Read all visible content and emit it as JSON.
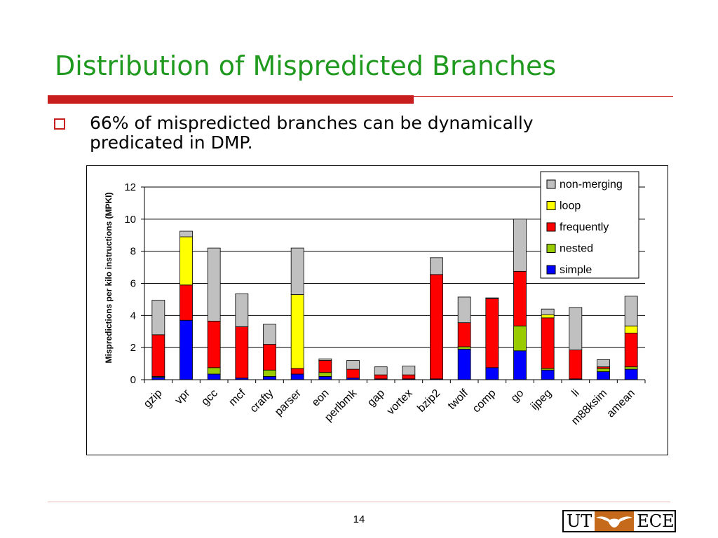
{
  "slide": {
    "title": "Distribution of Mispredicted Branches",
    "bullet": "66% of mispredicted branches can be dynamically predicated in DMP.",
    "page_number": "14",
    "logo": {
      "left": "UT",
      "right": "ECE",
      "icon": "longhorn-icon"
    }
  },
  "colors": {
    "title": "#1f9a1f",
    "accent": "#c81e1e",
    "non-merging": "#c0c0c0",
    "loop": "#ffff00",
    "frequently": "#ff0000",
    "nested": "#99cc00",
    "simple": "#0000ff"
  },
  "chart_data": {
    "type": "bar",
    "stacked": true,
    "ylabel": "Mispredictions per kilo instructions (MPKI)",
    "xlabel": "",
    "ylim": [
      0,
      12
    ],
    "yticks": [
      0,
      2,
      4,
      6,
      8,
      10,
      12
    ],
    "grid": true,
    "legend_position": "top-right",
    "categories": [
      "gzip",
      "vpr",
      "gcc",
      "mcf",
      "crafty",
      "parser",
      "eon",
      "perlbmk",
      "gap",
      "vortex",
      "bzip2",
      "twolf",
      "comp",
      "go",
      "ijpeg",
      "li",
      "m88ksim",
      "amean"
    ],
    "series": [
      {
        "name": "simple",
        "color": "#0000ff",
        "values": [
          0.15,
          3.7,
          0.35,
          0.1,
          0.2,
          0.35,
          0.2,
          0.1,
          0.05,
          0.05,
          0.05,
          1.9,
          0.75,
          1.8,
          0.6,
          0.05,
          0.5,
          0.65
        ]
      },
      {
        "name": "nested",
        "color": "#99cc00",
        "values": [
          0.05,
          0.0,
          0.4,
          0.0,
          0.4,
          0.0,
          0.25,
          0.0,
          0.0,
          0.0,
          0.0,
          0.15,
          0.0,
          1.55,
          0.1,
          0.0,
          0.2,
          0.15
        ]
      },
      {
        "name": "frequently",
        "color": "#ff0000",
        "values": [
          2.6,
          2.2,
          2.9,
          3.2,
          1.6,
          0.35,
          0.75,
          0.55,
          0.25,
          0.25,
          6.5,
          1.5,
          4.3,
          3.4,
          3.15,
          1.8,
          0.1,
          2.1
        ]
      },
      {
        "name": "loop",
        "color": "#ffff00",
        "values": [
          0.0,
          3.0,
          0.0,
          0.0,
          0.0,
          4.6,
          0.0,
          0.0,
          0.0,
          0.0,
          0.0,
          0.0,
          0.0,
          0.0,
          0.2,
          0.0,
          0.0,
          0.45
        ]
      },
      {
        "name": "non-merging",
        "color": "#c0c0c0",
        "values": [
          2.15,
          0.35,
          4.55,
          2.05,
          1.25,
          2.9,
          0.1,
          0.55,
          0.5,
          0.55,
          1.05,
          1.6,
          0.05,
          3.25,
          0.35,
          2.65,
          0.45,
          1.85
        ]
      }
    ],
    "legend_order": [
      "non-merging",
      "loop",
      "frequently",
      "nested",
      "simple"
    ]
  }
}
